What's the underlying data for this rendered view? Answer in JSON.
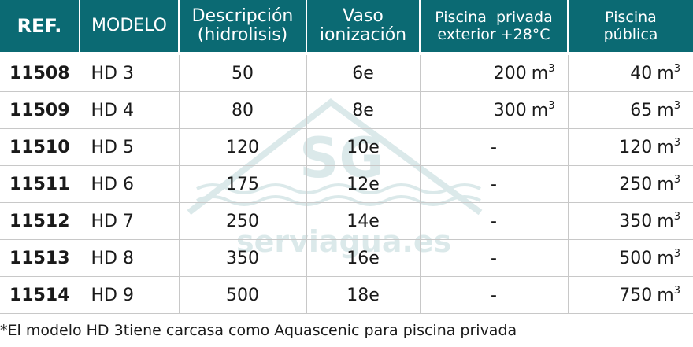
{
  "headers": {
    "ref": "REF.",
    "modelo": "MODELO",
    "descripcion": [
      "Descripción",
      "(hidrolisis)"
    ],
    "vaso": [
      "Vaso",
      "ionización"
    ],
    "privada": [
      "Piscina  privada",
      "exterior +28°C"
    ],
    "publica": [
      "Piscina",
      "pública"
    ]
  },
  "unit": "m",
  "unit_sup": "3",
  "rows": [
    {
      "ref": "11508",
      "modelo": "HD 3",
      "descripcion": "50",
      "vaso": "6e",
      "privada": "200",
      "publica": "40"
    },
    {
      "ref": "11509",
      "modelo": "HD 4",
      "descripcion": "80",
      "vaso": "8e",
      "privada": "300",
      "publica": "65"
    },
    {
      "ref": "11510",
      "modelo": "HD 5",
      "descripcion": "120",
      "vaso": "10e",
      "privada": "-",
      "publica": "120"
    },
    {
      "ref": "11511",
      "modelo": "HD 6",
      "descripcion": "175",
      "vaso": "12e",
      "privada": "-",
      "publica": "250"
    },
    {
      "ref": "11512",
      "modelo": "HD 7",
      "descripcion": "250",
      "vaso": "14e",
      "privada": "-",
      "publica": "350"
    },
    {
      "ref": "11513",
      "modelo": "HD 8",
      "descripcion": "350",
      "vaso": "16e",
      "privada": "-",
      "publica": "500"
    },
    {
      "ref": "11514",
      "modelo": "HD 9",
      "descripcion": "500",
      "vaso": "18e",
      "privada": "-",
      "publica": "750"
    }
  ],
  "watermark": {
    "logo": "SG",
    "text": "serviagua.es"
  },
  "footnote": "*El modelo HD 3tiene carcasa como Aquascenic para piscina privada",
  "colors": {
    "header_bg": "#0b6a73",
    "header_text": "#ffffff"
  }
}
